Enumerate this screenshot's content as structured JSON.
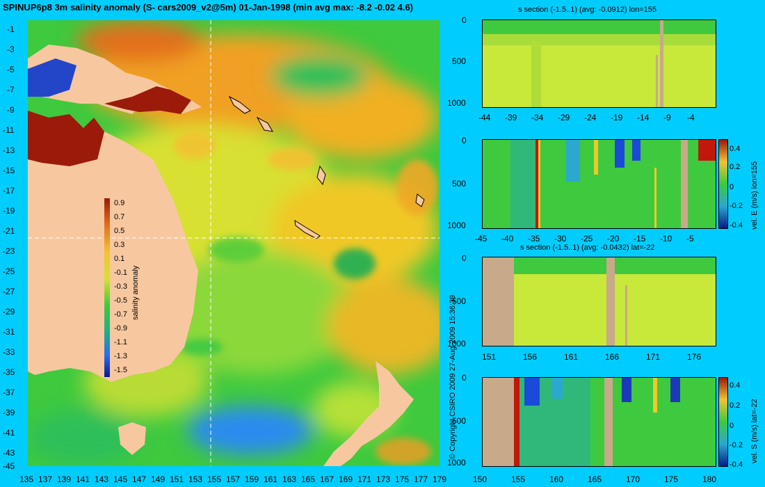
{
  "title": "SPINUP6p8 3m salinity anomaly (S- cars2009_v2@5m) 01-Jan-1998 (min avg max: -8.2 -0.02 4.6)",
  "copyright": "© Copyright CSIRO 2009   27-Aug-2009 15:36:39",
  "map": {
    "lon_ticks": [
      "135",
      "137",
      "139",
      "141",
      "143",
      "145",
      "147",
      "149",
      "151",
      "153",
      "155",
      "157",
      "159",
      "161",
      "163",
      "165",
      "167",
      "169",
      "171",
      "173",
      "175",
      "177",
      "179"
    ],
    "lat_ticks": [
      "-1",
      "-3",
      "-5",
      "-7",
      "-9",
      "-11",
      "-13",
      "-15",
      "-17",
      "-19",
      "-21",
      "-23",
      "-25",
      "-27",
      "-29",
      "-31",
      "-33",
      "-35",
      "-37",
      "-39",
      "-41",
      "-43",
      "-45"
    ],
    "section_lon": 155,
    "section_lat": -22,
    "colorbar": {
      "title": "salinity anomaly",
      "ticks": [
        "0.9",
        "0.7",
        "0.5",
        "0.3",
        "0.1",
        "-0.1",
        "-0.3",
        "-0.5",
        "-0.7",
        "-0.9",
        "-1.1",
        "-1.3",
        "-1.5"
      ]
    }
  },
  "panels": [
    {
      "title": "s section (-1.5..1) (avg: -0.0912) lon=155",
      "x_ticks": [
        "-44",
        "-39",
        "-34",
        "-29",
        "-24",
        "-19",
        "-14",
        "-9",
        "-4"
      ],
      "y_ticks": [
        "0",
        "500",
        "1000"
      ]
    },
    {
      "title": "",
      "x_ticks": [
        "-45",
        "-40",
        "-35",
        "-30",
        "-25",
        "-20",
        "-15",
        "-10",
        "-5"
      ],
      "y_ticks": [
        "0",
        "500",
        "1000"
      ],
      "colorbar_ticks": [
        "0.4",
        "0.2",
        "0",
        "-0.2",
        "-0.4"
      ],
      "colorbar_title": "vel. E (m/s) lon=155"
    },
    {
      "title": "s section (-1.5..1) (avg: -0.0432) lat=-22",
      "x_ticks": [
        "151",
        "156",
        "161",
        "166",
        "171",
        "176"
      ],
      "y_ticks": [
        "0",
        "500",
        "1000"
      ]
    },
    {
      "title": "",
      "x_ticks": [
        "150",
        "155",
        "160",
        "165",
        "170",
        "175",
        "180"
      ],
      "y_ticks": [
        "0",
        "500",
        "1000"
      ],
      "colorbar_ticks": [
        "0.4",
        "0.2",
        "0",
        "-0.2",
        "-0.4"
      ],
      "colorbar_title": "vel. S (m/s) lat=-22"
    }
  ]
}
